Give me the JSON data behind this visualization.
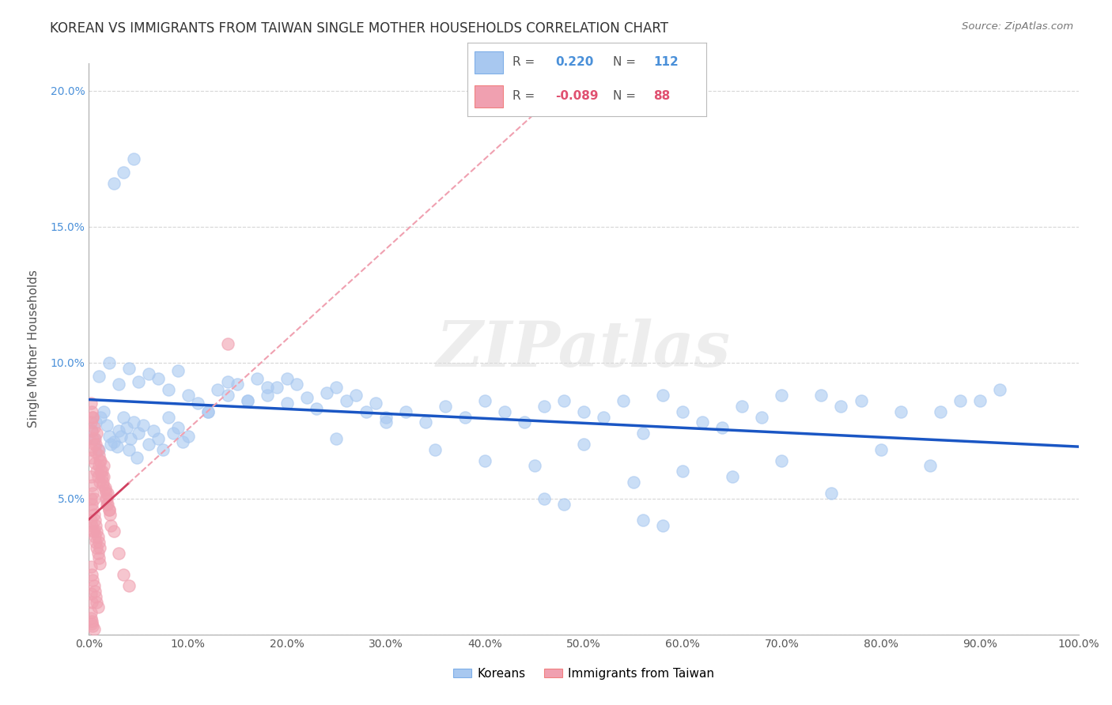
{
  "title": "KOREAN VS IMMIGRANTS FROM TAIWAN SINGLE MOTHER HOUSEHOLDS CORRELATION CHART",
  "source": "Source: ZipAtlas.com",
  "ylabel": "Single Mother Households",
  "xlim": [
    0,
    1.0
  ],
  "ylim": [
    0,
    0.21
  ],
  "xticks": [
    0.0,
    0.1,
    0.2,
    0.3,
    0.4,
    0.5,
    0.6,
    0.7,
    0.8,
    0.9,
    1.0
  ],
  "xtick_labels": [
    "0.0%",
    "10.0%",
    "20.0%",
    "30.0%",
    "40.0%",
    "50.0%",
    "60.0%",
    "70.0%",
    "80.0%",
    "90.0%",
    "100.0%"
  ],
  "yticks": [
    0.0,
    0.05,
    0.1,
    0.15,
    0.2
  ],
  "ytick_labels": [
    "",
    "5.0%",
    "10.0%",
    "15.0%",
    "20.0%"
  ],
  "korean_color": "#a8c8f0",
  "taiwan_color": "#f0a0b0",
  "korean_line_color": "#1a56c4",
  "taiwan_line_color": "#d04060",
  "taiwan_line_dash_color": "#f0a0b0",
  "background_color": "#ffffff",
  "grid_color": "#cccccc",
  "watermark": "ZIPatlas",
  "korean_scatter_x": [
    0.003,
    0.005,
    0.007,
    0.01,
    0.012,
    0.015,
    0.018,
    0.02,
    0.022,
    0.025,
    0.028,
    0.03,
    0.032,
    0.035,
    0.038,
    0.04,
    0.042,
    0.045,
    0.048,
    0.05,
    0.055,
    0.06,
    0.065,
    0.07,
    0.075,
    0.08,
    0.085,
    0.09,
    0.095,
    0.1,
    0.11,
    0.12,
    0.13,
    0.14,
    0.15,
    0.16,
    0.17,
    0.18,
    0.19,
    0.2,
    0.21,
    0.22,
    0.23,
    0.24,
    0.25,
    0.26,
    0.27,
    0.28,
    0.29,
    0.3,
    0.32,
    0.34,
    0.36,
    0.38,
    0.4,
    0.42,
    0.44,
    0.46,
    0.48,
    0.5,
    0.52,
    0.54,
    0.56,
    0.58,
    0.6,
    0.62,
    0.64,
    0.66,
    0.68,
    0.7,
    0.01,
    0.02,
    0.03,
    0.04,
    0.05,
    0.06,
    0.07,
    0.08,
    0.09,
    0.1,
    0.12,
    0.14,
    0.16,
    0.18,
    0.2,
    0.25,
    0.3,
    0.35,
    0.4,
    0.45,
    0.5,
    0.55,
    0.6,
    0.65,
    0.7,
    0.75,
    0.8,
    0.85,
    0.9,
    0.92,
    0.74,
    0.76,
    0.78,
    0.82,
    0.86,
    0.88,
    0.56,
    0.58,
    0.48,
    0.46,
    0.025,
    0.035,
    0.045
  ],
  "korean_scatter_y": [
    0.075,
    0.072,
    0.078,
    0.068,
    0.08,
    0.082,
    0.077,
    0.073,
    0.07,
    0.071,
    0.069,
    0.075,
    0.073,
    0.08,
    0.076,
    0.068,
    0.072,
    0.078,
    0.065,
    0.074,
    0.077,
    0.07,
    0.075,
    0.072,
    0.068,
    0.08,
    0.074,
    0.076,
    0.071,
    0.073,
    0.085,
    0.082,
    0.09,
    0.088,
    0.092,
    0.086,
    0.094,
    0.088,
    0.091,
    0.085,
    0.092,
    0.087,
    0.083,
    0.089,
    0.091,
    0.086,
    0.088,
    0.082,
    0.085,
    0.08,
    0.082,
    0.078,
    0.084,
    0.08,
    0.086,
    0.082,
    0.078,
    0.084,
    0.086,
    0.082,
    0.08,
    0.086,
    0.074,
    0.088,
    0.082,
    0.078,
    0.076,
    0.084,
    0.08,
    0.088,
    0.095,
    0.1,
    0.092,
    0.098,
    0.093,
    0.096,
    0.094,
    0.09,
    0.097,
    0.088,
    0.082,
    0.093,
    0.086,
    0.091,
    0.094,
    0.072,
    0.078,
    0.068,
    0.064,
    0.062,
    0.07,
    0.056,
    0.06,
    0.058,
    0.064,
    0.052,
    0.068,
    0.062,
    0.086,
    0.09,
    0.088,
    0.084,
    0.086,
    0.082,
    0.082,
    0.086,
    0.042,
    0.04,
    0.048,
    0.05,
    0.166,
    0.17,
    0.175
  ],
  "taiwan_scatter_x": [
    0.002,
    0.003,
    0.004,
    0.005,
    0.006,
    0.007,
    0.008,
    0.009,
    0.01,
    0.011,
    0.012,
    0.013,
    0.014,
    0.015,
    0.016,
    0.017,
    0.018,
    0.019,
    0.02,
    0.021,
    0.002,
    0.003,
    0.004,
    0.005,
    0.006,
    0.007,
    0.008,
    0.009,
    0.01,
    0.011,
    0.012,
    0.013,
    0.014,
    0.015,
    0.016,
    0.017,
    0.018,
    0.019,
    0.02,
    0.022,
    0.002,
    0.003,
    0.004,
    0.005,
    0.006,
    0.007,
    0.008,
    0.009,
    0.01,
    0.011,
    0.002,
    0.003,
    0.004,
    0.005,
    0.006,
    0.007,
    0.008,
    0.009,
    0.01,
    0.011,
    0.002,
    0.003,
    0.004,
    0.005,
    0.006,
    0.007,
    0.008,
    0.009,
    0.002,
    0.003,
    0.002,
    0.003,
    0.004,
    0.005,
    0.002,
    0.003,
    0.002,
    0.003,
    0.004,
    0.005,
    0.025,
    0.03,
    0.035,
    0.04,
    0.14,
    0.002,
    0.003,
    0.004
  ],
  "taiwan_scatter_y": [
    0.068,
    0.065,
    0.072,
    0.07,
    0.063,
    0.067,
    0.06,
    0.058,
    0.062,
    0.056,
    0.064,
    0.06,
    0.055,
    0.058,
    0.053,
    0.05,
    0.048,
    0.052,
    0.046,
    0.044,
    0.078,
    0.075,
    0.08,
    0.076,
    0.072,
    0.07,
    0.074,
    0.068,
    0.066,
    0.064,
    0.06,
    0.058,
    0.056,
    0.062,
    0.054,
    0.052,
    0.05,
    0.048,
    0.046,
    0.04,
    0.042,
    0.04,
    0.038,
    0.038,
    0.036,
    0.034,
    0.032,
    0.03,
    0.028,
    0.026,
    0.05,
    0.048,
    0.046,
    0.044,
    0.042,
    0.04,
    0.038,
    0.036,
    0.034,
    0.032,
    0.025,
    0.022,
    0.02,
    0.018,
    0.016,
    0.014,
    0.012,
    0.01,
    0.015,
    0.012,
    0.006,
    0.004,
    0.003,
    0.002,
    0.008,
    0.005,
    0.058,
    0.055,
    0.052,
    0.05,
    0.038,
    0.03,
    0.022,
    0.018,
    0.107,
    0.085,
    0.082,
    0.08
  ]
}
